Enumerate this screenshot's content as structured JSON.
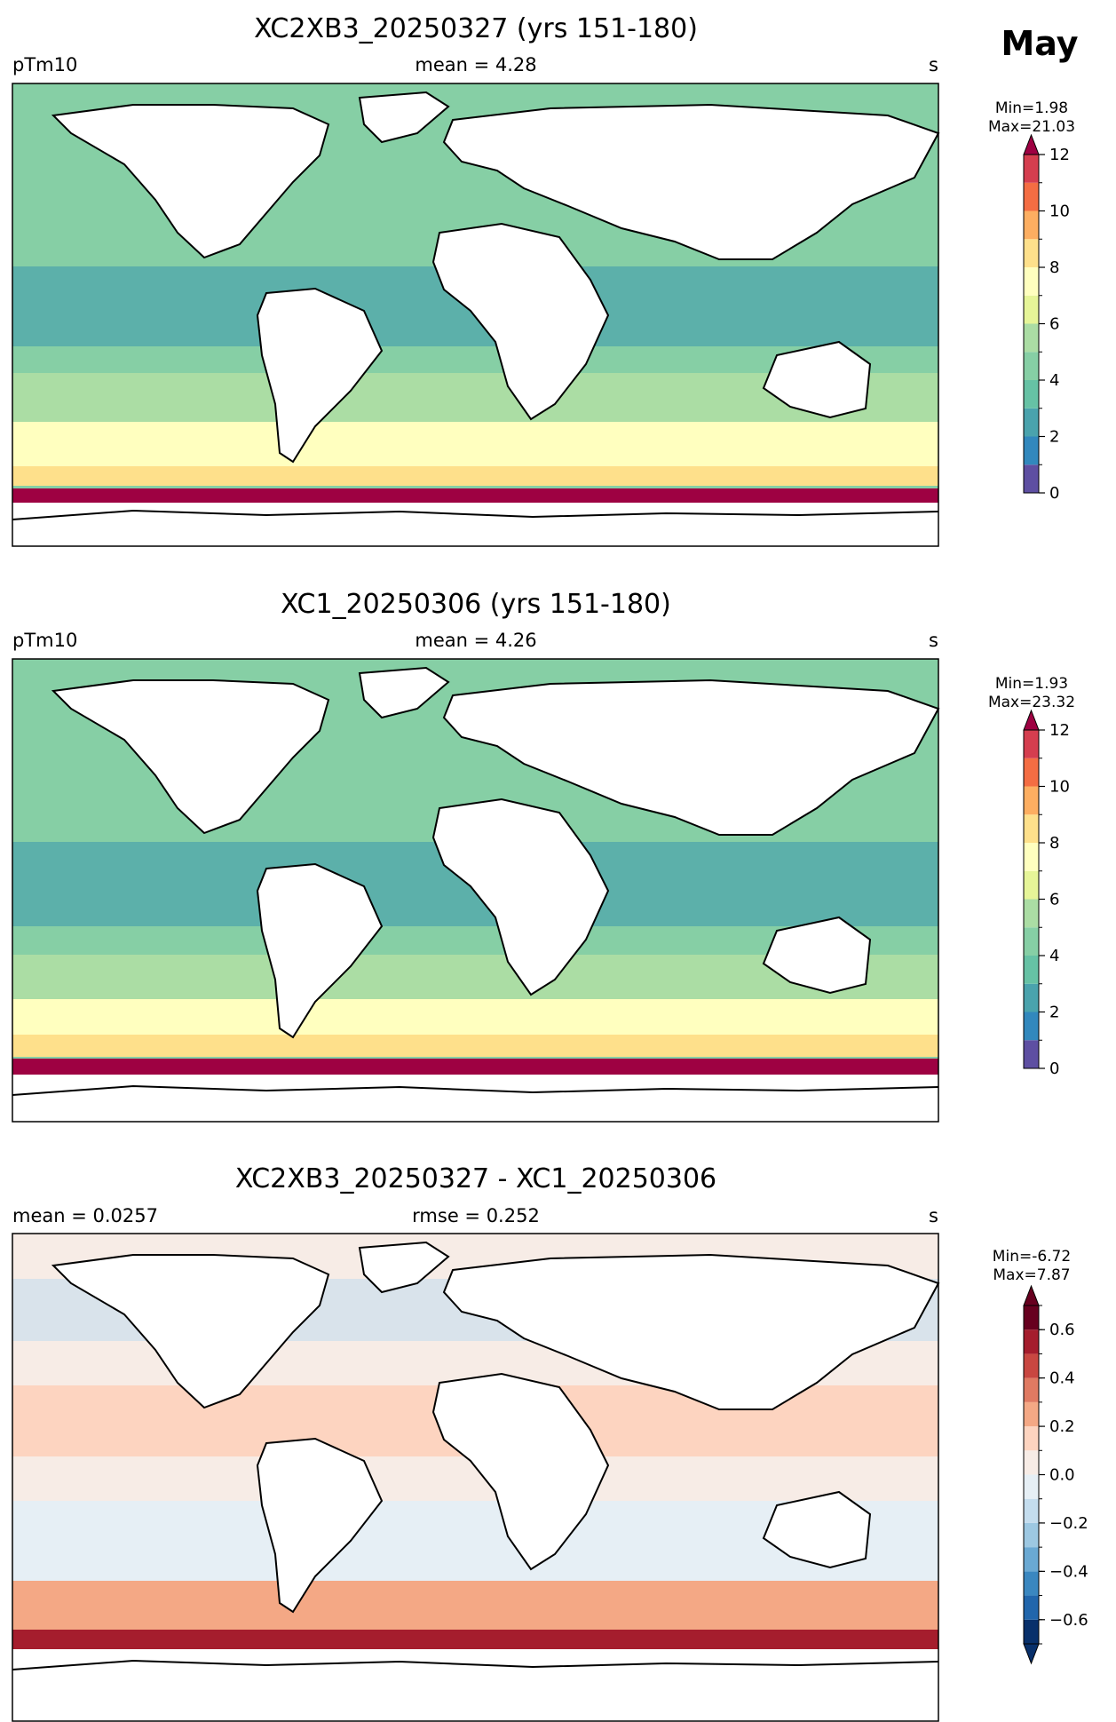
{
  "month_label": "May",
  "chart_data": [
    {
      "type": "heatmap",
      "title": "XC2XB3_20250327 (yrs 151-180)",
      "left_label": "pTm10",
      "center_label": "mean = 4.28",
      "right_label": "s",
      "variable": "pTm10",
      "units": "s",
      "mean": 4.28,
      "min_label": "Min=1.98",
      "max_label": "Max=21.03",
      "min": 1.98,
      "max": 21.03,
      "colormap": "Spectral_r",
      "colorbar": {
        "boundaries": [
          0,
          1,
          2,
          3,
          4,
          5,
          6,
          7,
          8,
          9,
          10,
          11,
          12
        ],
        "colors": [
          "#5e4fa2",
          "#3288bd",
          "#4aa3ad",
          "#66c2a5",
          "#86cfa5",
          "#abdda4",
          "#e6f598",
          "#ffffbf",
          "#fee08b",
          "#fdae61",
          "#f46d43",
          "#d53e4f",
          "#9e0142"
        ],
        "ticks": [
          0,
          2,
          4,
          6,
          8,
          10,
          12
        ],
        "tick_labels": [
          "0",
          "2",
          "4",
          "6",
          "8",
          "10",
          "12"
        ],
        "extend": "max"
      }
    },
    {
      "type": "heatmap",
      "title": "XC1_20250306 (yrs 151-180)",
      "left_label": "pTm10",
      "center_label": "mean = 4.26",
      "right_label": "s",
      "variable": "pTm10",
      "units": "s",
      "mean": 4.26,
      "min_label": "Min=1.93",
      "max_label": "Max=23.32",
      "min": 1.93,
      "max": 23.32,
      "colormap": "Spectral_r",
      "colorbar": {
        "boundaries": [
          0,
          1,
          2,
          3,
          4,
          5,
          6,
          7,
          8,
          9,
          10,
          11,
          12
        ],
        "colors": [
          "#5e4fa2",
          "#3288bd",
          "#4aa3ad",
          "#66c2a5",
          "#86cfa5",
          "#abdda4",
          "#e6f598",
          "#ffffbf",
          "#fee08b",
          "#fdae61",
          "#f46d43",
          "#d53e4f",
          "#9e0142"
        ],
        "ticks": [
          0,
          2,
          4,
          6,
          8,
          10,
          12
        ],
        "tick_labels": [
          "0",
          "2",
          "4",
          "6",
          "8",
          "10",
          "12"
        ],
        "extend": "max"
      }
    },
    {
      "type": "heatmap",
      "title": "XC2XB3_20250327 - XC1_20250306",
      "left_label": "mean = 0.0257",
      "center_label": "rmse = 0.252",
      "right_label": "s",
      "units": "s",
      "mean": 0.0257,
      "rmse": 0.252,
      "min_label": "Min=-6.72",
      "max_label": "Max=7.87",
      "min": -6.72,
      "max": 7.87,
      "colormap": "RdBu_r",
      "colorbar": {
        "boundaries": [
          -0.7,
          -0.6,
          -0.5,
          -0.4,
          -0.3,
          -0.2,
          -0.1,
          0.0,
          0.1,
          0.2,
          0.3,
          0.4,
          0.5,
          0.6,
          0.7
        ],
        "colors": [
          "#08306b",
          "#2166ac",
          "#3a87c0",
          "#6aa9d3",
          "#9dc8e2",
          "#c4ddee",
          "#e6eff5",
          "#f7ece6",
          "#fdd4c0",
          "#f4a885",
          "#e07a62",
          "#c94741",
          "#a51d2d",
          "#67001f"
        ],
        "ticks": [
          -0.6,
          -0.4,
          -0.2,
          0.0,
          0.2,
          0.4,
          0.6
        ],
        "tick_labels": [
          "−0.6",
          "−0.4",
          "−0.2",
          "0.0",
          "0.2",
          "0.4",
          "0.6"
        ],
        "extend": "both"
      }
    }
  ]
}
